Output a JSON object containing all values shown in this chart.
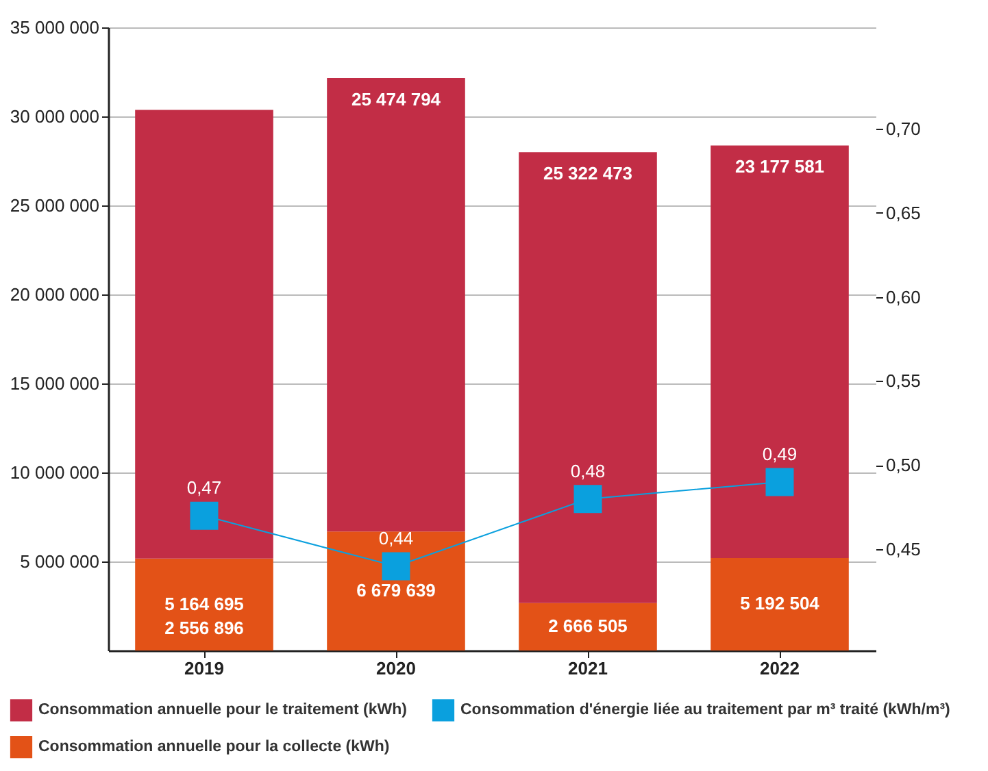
{
  "chart_data": {
    "type": "bar",
    "stacked": true,
    "categories": [
      "2019",
      "2020",
      "2021",
      "2022"
    ],
    "series": [
      {
        "name": "Consommation annuelle pour la collecte (kWh)",
        "color": "#e35217",
        "values": [
          5164695,
          6679639,
          2666505,
          5192504
        ],
        "value_labels": [
          "5 164 695",
          "6 679 639",
          "2 666 505",
          "5 192 504"
        ]
      },
      {
        "name": "Consommation annuelle pour le traitement (kWh)",
        "color": "#c22d46",
        "values": [
          25200000,
          25474794,
          25322473,
          23177581
        ],
        "value_labels": [
          null,
          "25 474 794",
          "25 322 473",
          "23 177 581"
        ]
      },
      {
        "name": "Consommation d'énergie liée au traitement par m³ traité (kWh/m³)",
        "type": "line",
        "axis": "y2",
        "color": "#0aa0de",
        "marker": "square",
        "values": [
          0.47,
          0.44,
          0.48,
          0.49
        ],
        "value_labels": [
          "0,47",
          "0,44",
          "0,48",
          "0,49"
        ]
      }
    ],
    "annotations": [
      "2 556 896"
    ],
    "ylim": [
      0,
      35000000
    ],
    "yticks": [
      {
        "value": 5000000,
        "label": "5 000 000"
      },
      {
        "value": 10000000,
        "label": "10 000 000"
      },
      {
        "value": 15000000,
        "label": "15 000 000"
      },
      {
        "value": 20000000,
        "label": "20 000 000"
      },
      {
        "value": 25000000,
        "label": "25 000 000"
      },
      {
        "value": 30000000,
        "label": "30 000 000"
      },
      {
        "value": 35000000,
        "label": "35 000 000"
      }
    ],
    "y2lim": [
      0.39,
      0.76
    ],
    "y2ticks": [
      {
        "value": 0.45,
        "label": "0,45"
      },
      {
        "value": 0.5,
        "label": "0,50"
      },
      {
        "value": 0.55,
        "label": "0,55"
      },
      {
        "value": 0.6,
        "label": "0,60"
      },
      {
        "value": 0.65,
        "label": "0,65"
      },
      {
        "value": 0.7,
        "label": "0,70"
      }
    ],
    "grid": "y",
    "legend": "bottom"
  }
}
